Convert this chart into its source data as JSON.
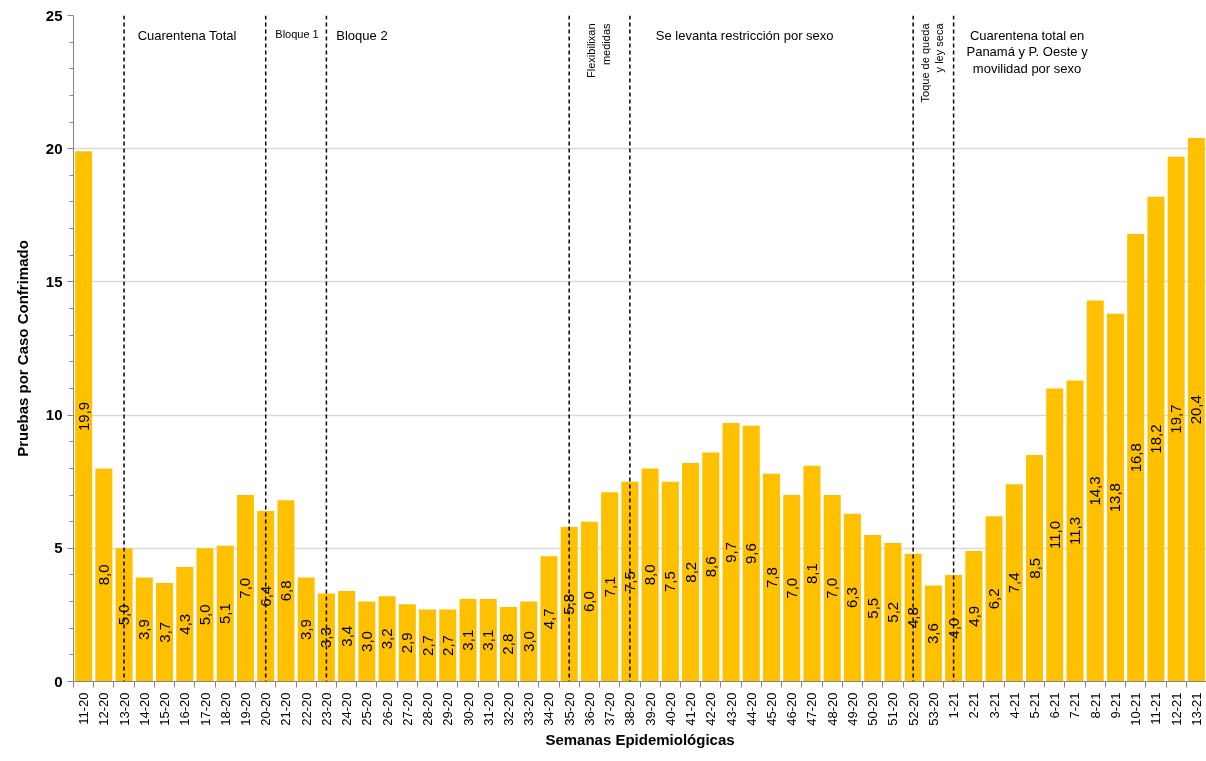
{
  "chart_data": {
    "type": "bar",
    "xlabel": "Semanas Epidemiológicas",
    "ylabel": "Pruebas por Caso Confrimado",
    "categories": [
      "11-20",
      "12-20",
      "13-20",
      "14-20",
      "15-20",
      "16-20",
      "17-20",
      "18-20",
      "19-20",
      "20-20",
      "21-20",
      "22-20",
      "23-20",
      "24-20",
      "25-20",
      "26-20",
      "27-20",
      "28-20",
      "29-20",
      "30-20",
      "31-20",
      "32-20",
      "33-20",
      "34-20",
      "35-20",
      "36-20",
      "37-20",
      "38-20",
      "39-20",
      "40-20",
      "41-20",
      "42-20",
      "43-20",
      "44-20",
      "45-20",
      "46-20",
      "47-20",
      "48-20",
      "49-20",
      "50-20",
      "51-20",
      "52-20",
      "53-20",
      "1-21",
      "2-21",
      "3-21",
      "4-21",
      "5-21",
      "6-21",
      "7-21",
      "8-21",
      "9-21",
      "10-21",
      "11-21",
      "12-21",
      "13-21"
    ],
    "values": [
      19.9,
      8.0,
      5.0,
      3.9,
      3.7,
      4.3,
      5.0,
      5.1,
      7.0,
      6.4,
      6.8,
      3.9,
      3.3,
      3.4,
      3.0,
      3.2,
      2.9,
      2.7,
      2.7,
      3.1,
      3.1,
      2.8,
      3.0,
      4.7,
      5.8,
      6.0,
      7.1,
      7.5,
      8.0,
      7.5,
      8.2,
      8.6,
      9.7,
      9.6,
      7.8,
      7.0,
      8.1,
      7.0,
      6.3,
      5.5,
      5.2,
      4.8,
      3.6,
      4.0,
      4.9,
      6.2,
      7.4,
      8.5,
      11.0,
      11.3,
      14.3,
      13.8,
      16.8,
      18.2,
      19.7,
      20.4
    ],
    "value_labels": [
      "19,9",
      "8,0",
      "5,0",
      "3,9",
      "3,7",
      "4,3",
      "5,0",
      "5,1",
      "7,0",
      "6,4",
      "6,8",
      "3,9",
      "3,3",
      "3,4",
      "3,0",
      "3,2",
      "2,9",
      "2,7",
      "2,7",
      "3,1",
      "3,1",
      "2,8",
      "3,0",
      "4,7",
      "5,8",
      "6,0",
      "7,1",
      "7,5",
      "8,0",
      "7,5",
      "8,2",
      "8,6",
      "9,7",
      "9,6",
      "7,8",
      "7,0",
      "8,1",
      "7,0",
      "6,3",
      "5,5",
      "5,2",
      "4,8",
      "3,6",
      "4,0",
      "4,9",
      "6,2",
      "7,4",
      "8,5",
      "11,0",
      "11,3",
      "14,3",
      "13,8",
      "16,8",
      "18,2",
      "19,7",
      "20,4"
    ],
    "color": "#ffc000",
    "ylim": [
      0,
      25
    ],
    "yticks": [
      0,
      {
        "value": 1,
        "label": null
      },
      {
        "value": 2,
        "label": null
      },
      {
        "value": 3,
        "label": null
      },
      {
        "value": 4,
        "label": null
      },
      5,
      {
        "value": 6,
        "label": null
      },
      {
        "value": 7,
        "label": null
      },
      {
        "value": 8,
        "label": null
      },
      {
        "value": 9,
        "label": null
      },
      10,
      {
        "value": 11,
        "label": null
      },
      {
        "value": 12,
        "label": null
      },
      {
        "value": 13,
        "label": null
      },
      {
        "value": 14,
        "label": null
      },
      15,
      {
        "value": 16,
        "label": null
      },
      {
        "value": 17,
        "label": null
      },
      {
        "value": 18,
        "label": null
      },
      {
        "value": 19,
        "label": null
      },
      20,
      {
        "value": 21,
        "label": null
      },
      {
        "value": 22,
        "label": null
      },
      {
        "value": 23,
        "label": null
      },
      {
        "value": 24,
        "label": null
      },
      25
    ],
    "grid": "y",
    "ref_lines": [
      {
        "axis": "x",
        "value": "13-20",
        "label": "Cuarentena Total",
        "color": "#000000",
        "line_style": "dashed"
      },
      {
        "axis": "x",
        "value": "20-20",
        "label": "Bloque 1",
        "color": "#000000",
        "line_style": "dashed"
      },
      {
        "axis": "x",
        "value": "23-20",
        "label": "Bloque 2",
        "color": "#000000",
        "line_style": "dashed"
      },
      {
        "axis": "x",
        "value": "35-20",
        "label": "Flexibilixan medidas",
        "color": "#000000",
        "line_style": "dashed"
      },
      {
        "axis": "x",
        "value": "38-20",
        "label": "Se levanta restricción por sexo",
        "color": "#000000",
        "line_style": "dashed"
      },
      {
        "axis": "x",
        "value": "52-20",
        "label": "Toque de queda y ley seca",
        "color": "#000000",
        "line_style": "dashed"
      },
      {
        "axis": "x",
        "value": "1-21",
        "label": "Cuarentena total en Panamá y P. Oeste y movilidad por sexo",
        "color": "#000000",
        "line_style": "dashed"
      }
    ]
  }
}
